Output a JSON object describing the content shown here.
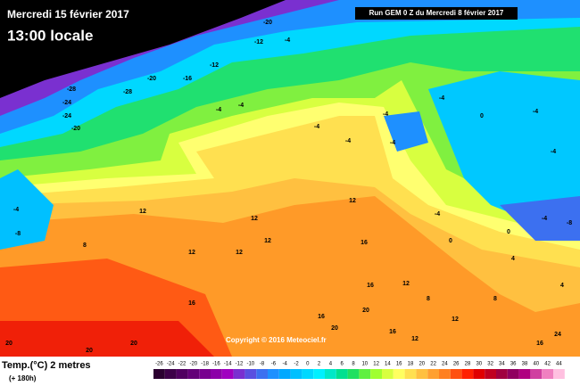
{
  "header": {
    "title": "Mercredi 15 février 2017",
    "time": "13:00 locale",
    "run": "Run GEM 0 Z du Mercredi 8 février 2017",
    "copyright": "Copyright © 2016 Meteociel.fr"
  },
  "legend": {
    "title": "Temp.(°C) 2 metres",
    "subtitle": "(+ 180h)",
    "ticks": [
      -26,
      -24,
      -22,
      -20,
      -18,
      -16,
      -14,
      -12,
      -10,
      -8,
      -6,
      -4,
      -2,
      0,
      2,
      4,
      6,
      8,
      10,
      12,
      14,
      16,
      18,
      20,
      22,
      24,
      26,
      28,
      30,
      32,
      34,
      36,
      38,
      40,
      42,
      44
    ],
    "colors": [
      "#2b0030",
      "#3d0048",
      "#500060",
      "#640078",
      "#78008f",
      "#8c00a8",
      "#a000c0",
      "#7a30d0",
      "#5a50e0",
      "#3c70f0",
      "#1e90ff",
      "#00a8ff",
      "#00c0ff",
      "#00d8ff",
      "#00f0ff",
      "#00e8c8",
      "#00e090",
      "#20e060",
      "#60f040",
      "#a0ff30",
      "#d8ff40",
      "#ffff60",
      "#ffe050",
      "#ffc040",
      "#ffa030",
      "#ff8020",
      "#ff5010",
      "#ff2000",
      "#e00000",
      "#c00020",
      "#a00040",
      "#900060",
      "#b00080",
      "#d040a0",
      "#f080c0",
      "#ffc0e0"
    ]
  },
  "map_labels": [
    -20,
    -4,
    -12,
    -12,
    -16,
    -20,
    -20,
    -24,
    -28,
    -28,
    -24,
    -24,
    -20,
    -4,
    -4,
    -4,
    -4,
    -4,
    -4,
    -4,
    -8,
    -4,
    0,
    -4,
    -4,
    -8,
    -4,
    0,
    -4,
    0,
    4,
    4,
    8,
    8,
    12,
    12,
    12,
    12,
    16,
    16,
    12,
    12,
    16,
    20,
    20,
    16,
    12,
    16,
    8,
    12,
    12,
    20,
    20,
    20,
    16,
    24
  ]
}
